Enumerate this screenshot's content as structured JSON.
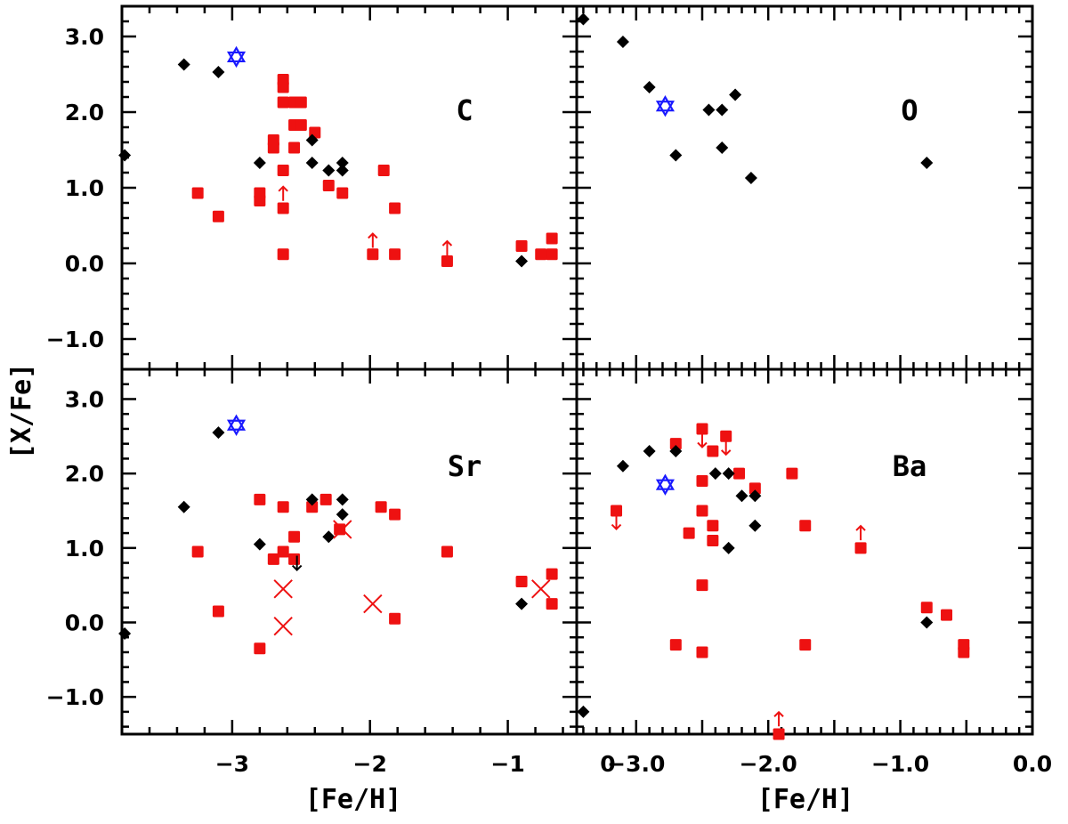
{
  "chart_data": {
    "type": "scatter",
    "ylabel": "[X/Fe]",
    "panels": [
      {
        "name": "C",
        "ylim": [
          -1.4,
          3.4
        ],
        "xlim": [
          -3.8,
          -0.5
        ],
        "yticks": [
          3.0,
          2.0,
          1.0,
          0.0,
          -1.0
        ],
        "ytick_labels": [
          "3.0",
          "2.0",
          "1.0",
          "0.0",
          "−1.0"
        ],
        "black_diamonds": [
          [
            -3.78,
            1.43
          ],
          [
            -3.35,
            2.63
          ],
          [
            -3.1,
            2.53
          ],
          [
            -2.8,
            1.33
          ],
          [
            -2.42,
            1.63
          ],
          [
            -2.42,
            1.33
          ],
          [
            -2.3,
            1.23
          ],
          [
            -2.2,
            1.33
          ],
          [
            -2.2,
            1.23
          ],
          [
            -0.9,
            0.03
          ]
        ],
        "red_squares": [
          [
            -3.25,
            0.93
          ],
          [
            -3.1,
            0.62
          ],
          [
            -2.8,
            0.93
          ],
          [
            -2.8,
            0.83
          ],
          [
            -2.7,
            1.63
          ],
          [
            -2.7,
            1.53
          ],
          [
            -2.63,
            2.43
          ],
          [
            -2.63,
            2.33
          ],
          [
            -2.63,
            2.13
          ],
          [
            -2.63,
            1.23
          ],
          [
            -2.63,
            0.73
          ],
          [
            -2.63,
            0.12
          ],
          [
            -2.55,
            2.13
          ],
          [
            -2.55,
            1.83
          ],
          [
            -2.55,
            1.53
          ],
          [
            -2.5,
            2.13
          ],
          [
            -2.5,
            1.83
          ],
          [
            -2.4,
            1.73
          ],
          [
            -2.3,
            1.03
          ],
          [
            -2.2,
            0.93
          ],
          [
            -1.98,
            0.12
          ],
          [
            -1.9,
            1.23
          ],
          [
            -1.82,
            0.73
          ],
          [
            -1.82,
            0.12
          ],
          [
            -1.44,
            0.03
          ],
          [
            -0.9,
            0.23
          ],
          [
            -0.76,
            0.12
          ],
          [
            -0.68,
            0.33
          ],
          [
            -0.68,
            0.12
          ]
        ],
        "blue_stars": [
          [
            -2.97,
            2.73
          ]
        ],
        "red_up_arrows": [
          [
            -2.63,
            0.92
          ],
          [
            -1.98,
            0.3
          ],
          [
            -1.44,
            0.2
          ]
        ],
        "black_down_arrows": [],
        "red_down_arrows": [],
        "red_crosses": []
      },
      {
        "name": "O",
        "ylim": [
          -1.4,
          3.4
        ],
        "xlim": [
          -3.45,
          0.0
        ],
        "yticks": [],
        "black_diamonds": [
          [
            -3.4,
            3.23
          ],
          [
            -3.1,
            2.93
          ],
          [
            -2.9,
            2.33
          ],
          [
            -2.7,
            1.43
          ],
          [
            -2.45,
            2.03
          ],
          [
            -2.35,
            2.03
          ],
          [
            -2.35,
            1.53
          ],
          [
            -2.25,
            2.23
          ],
          [
            -2.13,
            1.13
          ],
          [
            -0.8,
            1.33
          ]
        ],
        "red_squares": [],
        "blue_stars": [
          [
            -2.78,
            2.08
          ]
        ],
        "red_up_arrows": [],
        "black_down_arrows": [],
        "red_down_arrows": [],
        "red_crosses": []
      },
      {
        "name": "Sr",
        "ylim": [
          -1.5,
          3.4
        ],
        "xlim": [
          -3.8,
          -0.5
        ],
        "yticks": [
          3.0,
          2.0,
          1.0,
          0.0,
          -1.0
        ],
        "ytick_labels": [
          "3.0",
          "2.0",
          "1.0",
          "0.0",
          "−1.0"
        ],
        "black_diamonds": [
          [
            -3.78,
            -0.15
          ],
          [
            -3.35,
            1.55
          ],
          [
            -3.1,
            2.55
          ],
          [
            -2.8,
            1.05
          ],
          [
            -2.42,
            1.65
          ],
          [
            -2.3,
            1.15
          ],
          [
            -2.2,
            1.65
          ],
          [
            -2.2,
            1.45
          ],
          [
            -0.9,
            0.25
          ]
        ],
        "red_squares": [
          [
            -3.25,
            0.95
          ],
          [
            -3.1,
            0.15
          ],
          [
            -2.8,
            1.65
          ],
          [
            -2.8,
            -0.35
          ],
          [
            -2.7,
            0.85
          ],
          [
            -2.63,
            1.55
          ],
          [
            -2.63,
            0.95
          ],
          [
            -2.55,
            1.15
          ],
          [
            -2.55,
            0.85
          ],
          [
            -2.42,
            1.55
          ],
          [
            -2.32,
            1.65
          ],
          [
            -2.22,
            1.25
          ],
          [
            -1.92,
            1.55
          ],
          [
            -1.82,
            1.45
          ],
          [
            -1.82,
            0.05
          ],
          [
            -1.44,
            0.95
          ],
          [
            -0.9,
            0.55
          ],
          [
            -0.68,
            0.65
          ],
          [
            -0.68,
            0.25
          ]
        ],
        "blue_stars": [
          [
            -2.97,
            2.65
          ]
        ],
        "red_up_arrows": [],
        "black_down_arrows": [
          [
            -2.53,
            0.8
          ]
        ],
        "red_down_arrows": [],
        "red_crosses": [
          [
            -2.63,
            0.45
          ],
          [
            -2.63,
            -0.05
          ],
          [
            -2.2,
            1.25
          ],
          [
            -1.98,
            0.25
          ],
          [
            -0.76,
            0.45
          ]
        ]
      },
      {
        "name": "Ba",
        "ylim": [
          -1.5,
          3.4
        ],
        "xlim": [
          -3.45,
          0.0
        ],
        "yticks": [],
        "xticks": [
          -3.0,
          -2.0,
          -1.0,
          0.0
        ],
        "xtick_labels": [
          "−3.0",
          "−2.0",
          "−1.0",
          "0.0"
        ],
        "black_diamonds": [
          [
            -3.4,
            -1.2
          ],
          [
            -3.1,
            2.1
          ],
          [
            -2.9,
            2.3
          ],
          [
            -2.7,
            2.3
          ],
          [
            -2.4,
            2.0
          ],
          [
            -2.3,
            2.0
          ],
          [
            -2.3,
            1.0
          ],
          [
            -2.2,
            1.7
          ],
          [
            -2.1,
            1.7
          ],
          [
            -2.1,
            1.3
          ],
          [
            -0.8,
            0.0
          ]
        ],
        "red_squares": [
          [
            -3.15,
            1.5
          ],
          [
            -2.7,
            2.4
          ],
          [
            -2.7,
            -0.3
          ],
          [
            -2.6,
            1.2
          ],
          [
            -2.5,
            2.6
          ],
          [
            -2.5,
            1.9
          ],
          [
            -2.5,
            1.5
          ],
          [
            -2.5,
            0.5
          ],
          [
            -2.5,
            -0.4
          ],
          [
            -2.42,
            2.3
          ],
          [
            -2.42,
            1.3
          ],
          [
            -2.42,
            1.1
          ],
          [
            -2.32,
            2.5
          ],
          [
            -2.22,
            2.0
          ],
          [
            -2.1,
            1.8
          ],
          [
            -1.82,
            2.0
          ],
          [
            -1.72,
            1.3
          ],
          [
            -1.72,
            -0.3
          ],
          [
            -1.3,
            1.0
          ],
          [
            -1.92,
            -1.5
          ],
          [
            -0.8,
            0.2
          ],
          [
            -0.65,
            0.1
          ],
          [
            -0.52,
            -0.3
          ],
          [
            -0.52,
            -0.4
          ]
        ],
        "blue_stars": [
          [
            -2.78,
            1.85
          ]
        ],
        "red_up_arrows": [
          [
            -1.3,
            1.2
          ],
          [
            -1.92,
            -1.3
          ]
        ],
        "black_down_arrows": [],
        "red_down_arrows": [
          [
            -3.15,
            1.35
          ],
          [
            -2.5,
            2.45
          ],
          [
            -2.32,
            2.35
          ]
        ],
        "red_crosses": []
      }
    ],
    "bottom_left_axis": {
      "xlabel": "[Fe/H]",
      "xticks": [
        -3,
        -2,
        -1
      ],
      "xtick_labels": [
        "−3",
        "−2",
        "−1"
      ]
    },
    "bottom_right_axis": {
      "xlabel": "[Fe/H]",
      "extra_label": "0"
    }
  }
}
